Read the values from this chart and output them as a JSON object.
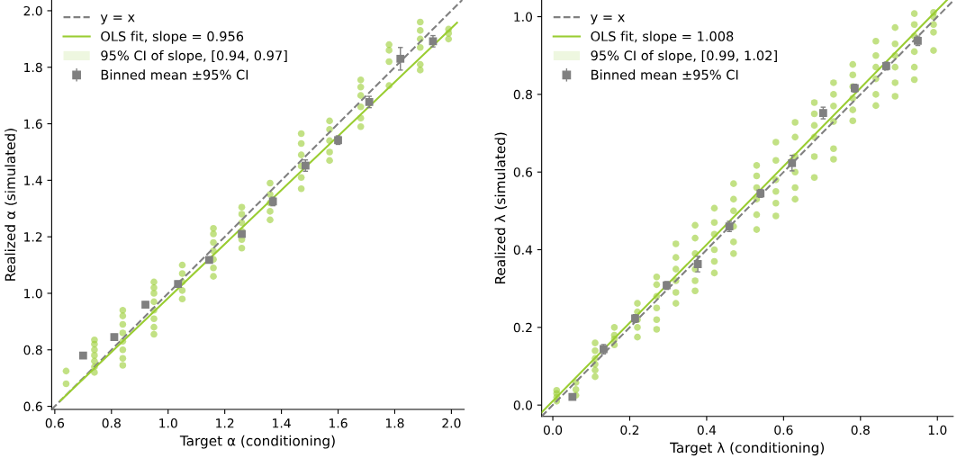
{
  "chart_data": [
    {
      "type": "scatter",
      "xlabel": "Target α (conditioning)",
      "ylabel": "Realized α (simulated)",
      "xlim": [
        0.589,
        2.045
      ],
      "ylim": [
        0.589,
        2.038
      ],
      "xticks": [
        0.6,
        0.8,
        {
          "value": 1,
          "label": "1.0"
        },
        1.2,
        1.4,
        1.6,
        1.8,
        {
          "value": 2,
          "label": "2.0"
        }
      ],
      "yticks": [
        0.6,
        0.8,
        {
          "value": 1,
          "label": "1.0"
        },
        1.2,
        1.4,
        1.6,
        1.8,
        {
          "value": 2,
          "label": "2.0"
        }
      ],
      "grid": false,
      "legend": "top left",
      "series": [
        {
          "color": "#9acd32",
          "marker": "circle",
          "x": [
            0.64,
            0.64,
            0.74,
            0.74,
            0.74,
            0.74,
            0.74,
            0.74,
            0.74,
            0.84,
            0.84,
            0.84,
            0.84,
            0.84,
            0.84,
            0.84,
            0.84,
            0.95,
            0.95,
            0.95,
            0.95,
            0.95,
            0.95,
            0.95,
            0.95,
            1.05,
            1.05,
            1.05,
            1.05,
            1.05,
            1.16,
            1.16,
            1.16,
            1.16,
            1.16,
            1.16,
            1.16,
            1.26,
            1.26,
            1.26,
            1.26,
            1.26,
            1.26,
            1.36,
            1.36,
            1.36,
            1.36,
            1.36,
            1.47,
            1.47,
            1.47,
            1.47,
            1.47,
            1.47,
            1.57,
            1.57,
            1.57,
            1.57,
            1.57,
            1.68,
            1.68,
            1.68,
            1.68,
            1.68,
            1.68,
            1.78,
            1.78,
            1.78,
            1.78,
            1.89,
            1.89,
            1.89,
            1.89,
            1.89,
            1.89,
            1.99,
            1.99,
            1.99
          ],
          "values": [
            0.68,
            0.725,
            0.72,
            0.74,
            0.76,
            0.78,
            0.8,
            0.82,
            0.835,
            0.745,
            0.77,
            0.8,
            0.83,
            0.86,
            0.89,
            0.92,
            0.94,
            0.855,
            0.88,
            0.91,
            0.94,
            0.97,
            1.0,
            1.02,
            1.04,
            0.98,
            1.01,
            1.04,
            1.07,
            1.1,
            1.06,
            1.09,
            1.12,
            1.15,
            1.18,
            1.21,
            1.23,
            1.16,
            1.19,
            1.22,
            1.25,
            1.28,
            1.305,
            1.26,
            1.29,
            1.32,
            1.35,
            1.39,
            1.37,
            1.41,
            1.45,
            1.49,
            1.53,
            1.565,
            1.47,
            1.5,
            1.54,
            1.58,
            1.61,
            1.59,
            1.62,
            1.66,
            1.7,
            1.73,
            1.755,
            1.735,
            1.82,
            1.86,
            1.88,
            1.79,
            1.81,
            1.87,
            1.9,
            1.93,
            1.96,
            1.9,
            1.92,
            1.935
          ]
        },
        {
          "type": "line",
          "name": "y = x",
          "color": "#808080",
          "line_style": "dashed",
          "x": [
            0.589,
            2.038
          ],
          "values": [
            0.589,
            2.038
          ]
        },
        {
          "type": "line",
          "name": "OLS fit, slope = 0.956",
          "color": "#9acd32",
          "line_style": "solid",
          "x": [
            0.62,
            2.02
          ],
          "values": [
            0.62,
            1.958
          ]
        },
        {
          "type": "area",
          "name": "95% CI of slope, [0.94, 0.97]",
          "color": "#eef7e0"
        },
        {
          "name": "Binned mean ±95% CI",
          "color": "#808080",
          "marker": "square",
          "x": [
            0.7,
            0.81,
            0.92,
            1.035,
            1.145,
            1.26,
            1.37,
            1.485,
            1.6,
            1.71,
            1.82,
            1.935
          ],
          "values": [
            0.78,
            0.845,
            0.96,
            1.033,
            1.118,
            1.21,
            1.325,
            1.452,
            1.542,
            1.677,
            1.83,
            1.892
          ],
          "errors": [
            0.01,
            0.01,
            0.01,
            0.01,
            0.01,
            0.01,
            0.015,
            0.02,
            0.015,
            0.02,
            0.04,
            0.02
          ]
        }
      ]
    },
    {
      "type": "scatter",
      "xlabel": "Target λ (conditioning)",
      "ylabel": "Realized λ (simulated)",
      "xlim": [
        -0.029,
        1.041
      ],
      "ylim": [
        -0.029,
        1.043
      ],
      "xticks": [
        {
          "value": 0,
          "label": "0.0"
        },
        0.2,
        0.4,
        0.6,
        0.8,
        {
          "value": 1,
          "label": "1.0"
        }
      ],
      "yticks": [
        {
          "value": 0,
          "label": "0.0"
        },
        0.2,
        0.4,
        0.6,
        0.8,
        {
          "value": 1,
          "label": "1.0"
        }
      ],
      "grid": false,
      "legend": "top left",
      "series": [
        {
          "color": "#9acd32",
          "marker": "circle",
          "x": [
            0.01,
            0.01,
            0.01,
            0.01,
            0.06,
            0.06,
            0.06,
            0.11,
            0.11,
            0.11,
            0.11,
            0.11,
            0.11,
            0.16,
            0.16,
            0.16,
            0.16,
            0.22,
            0.22,
            0.22,
            0.22,
            0.22,
            0.27,
            0.27,
            0.27,
            0.27,
            0.27,
            0.27,
            0.32,
            0.32,
            0.32,
            0.32,
            0.32,
            0.32,
            0.37,
            0.37,
            0.37,
            0.37,
            0.37,
            0.37,
            0.42,
            0.42,
            0.42,
            0.42,
            0.42,
            0.42,
            0.47,
            0.47,
            0.47,
            0.47,
            0.47,
            0.47,
            0.53,
            0.53,
            0.53,
            0.53,
            0.53,
            0.53,
            0.58,
            0.58,
            0.58,
            0.58,
            0.58,
            0.58,
            0.63,
            0.63,
            0.63,
            0.63,
            0.63,
            0.63,
            0.68,
            0.68,
            0.68,
            0.68,
            0.68,
            0.68,
            0.73,
            0.73,
            0.73,
            0.73,
            0.73,
            0.73,
            0.78,
            0.78,
            0.78,
            0.78,
            0.78,
            0.78,
            0.84,
            0.84,
            0.84,
            0.84,
            0.84,
            0.84,
            0.89,
            0.89,
            0.89,
            0.89,
            0.89,
            0.89,
            0.94,
            0.94,
            0.94,
            0.94,
            0.94,
            0.94,
            0.99,
            0.99,
            0.99,
            0.99,
            0.99
          ],
          "values": [
            0.01,
            0.02,
            0.03,
            0.038,
            0.025,
            0.04,
            0.058,
            0.073,
            0.09,
            0.105,
            0.12,
            0.14,
            0.16,
            0.155,
            0.17,
            0.18,
            0.2,
            0.175,
            0.2,
            0.22,
            0.24,
            0.262,
            0.195,
            0.22,
            0.25,
            0.28,
            0.31,
            0.33,
            0.262,
            0.29,
            0.32,
            0.35,
            0.38,
            0.415,
            0.294,
            0.32,
            0.35,
            0.39,
            0.43,
            0.463,
            0.34,
            0.37,
            0.4,
            0.44,
            0.47,
            0.507,
            0.39,
            0.42,
            0.46,
            0.5,
            0.53,
            0.57,
            0.452,
            0.49,
            0.53,
            0.56,
            0.59,
            0.617,
            0.487,
            0.52,
            0.55,
            0.58,
            0.63,
            0.677,
            0.53,
            0.56,
            0.6,
            0.64,
            0.69,
            0.728,
            0.586,
            0.64,
            0.69,
            0.72,
            0.75,
            0.779,
            0.633,
            0.66,
            0.73,
            0.77,
            0.8,
            0.83,
            0.732,
            0.76,
            0.79,
            0.82,
            0.85,
            0.877,
            0.771,
            0.8,
            0.84,
            0.87,
            0.9,
            0.937,
            0.795,
            0.83,
            0.87,
            0.9,
            0.93,
            0.972,
            0.838,
            0.87,
            0.91,
            0.95,
            0.98,
            1.008,
            0.913,
            0.96,
            0.98,
            1.0,
            1.011
          ]
        },
        {
          "type": "line",
          "name": "y = x",
          "color": "#808080",
          "line_style": "dashed",
          "x": [
            -0.029,
            1.041
          ],
          "values": [
            -0.029,
            1.041
          ]
        },
        {
          "type": "line",
          "name": "OLS fit, slope = 1.008",
          "color": "#9acd32",
          "line_style": "solid",
          "x": [
            -0.029,
            1.025
          ],
          "values": [
            -0.019,
            1.043
          ]
        },
        {
          "type": "area",
          "name": "95% CI of slope, [0.99, 1.02]",
          "color": "#eef7e0"
        },
        {
          "name": "Binned mean ±95% CI",
          "color": "#808080",
          "marker": "square",
          "x": [
            0.051,
            0.132,
            0.214,
            0.296,
            0.377,
            0.459,
            0.54,
            0.622,
            0.703,
            0.785,
            0.867,
            0.949
          ],
          "values": [
            0.021,
            0.144,
            0.223,
            0.308,
            0.363,
            0.46,
            0.545,
            0.623,
            0.752,
            0.816,
            0.873,
            0.938
          ],
          "errors": [
            0.005,
            0.012,
            0.01,
            0.01,
            0.02,
            0.013,
            0.01,
            0.02,
            0.015,
            0.01,
            0.01,
            0.012
          ]
        }
      ]
    }
  ]
}
